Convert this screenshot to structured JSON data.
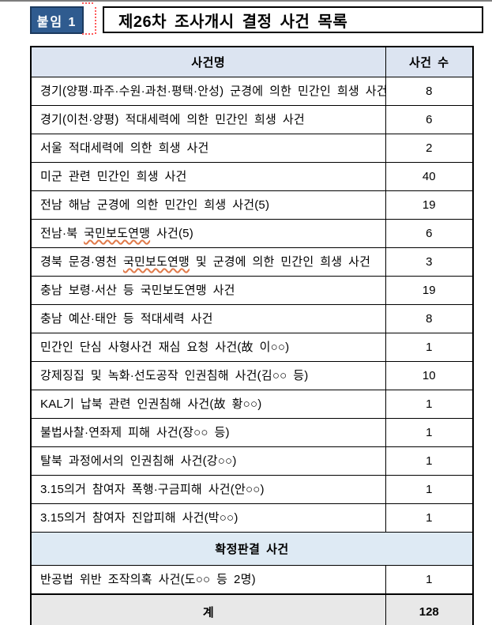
{
  "header": {
    "badge_label": "붙임 1",
    "title": "제26차 조사개시 결정 사건 목록"
  },
  "table": {
    "headers": {
      "name": "사건명",
      "count": "사건 수"
    },
    "rows": [
      {
        "name": "경기(양평·파주·수원·과천·평택·안성) 군경에 의한 민간인 희생 사건",
        "count": "8"
      },
      {
        "name": "경기(이천·양평) 적대세력에 의한 민간인 희생 사건",
        "count": "6"
      },
      {
        "name": "서울 적대세력에 의한 희생 사건",
        "count": "2"
      },
      {
        "name": "미군 관련 민간인 희생 사건",
        "count": "40"
      },
      {
        "name": "전남 해남 군경에 의한 민간인 희생 사건(5)",
        "count": "19"
      },
      {
        "name_pre": "전남·북 ",
        "wavy": "국민보도연맹",
        "name_post": " 사건(5)",
        "count": "6"
      },
      {
        "name_pre": "경북 문경·영천 ",
        "wavy": "국민보도연맹",
        "name_post": " 및 군경에 의한 민간인 희생 사건",
        "count": "3"
      },
      {
        "name": "충남 보령·서산 등 국민보도연맹 사건",
        "count": "19"
      },
      {
        "name": "충남 예산·태안 등 적대세력 사건",
        "count": "8"
      },
      {
        "name": "민간인 단심 사형사건 재심 요청 사건(故 이○○)",
        "count": "1"
      },
      {
        "name": "강제징집 및 녹화·선도공작 인권침해 사건(김○○ 등)",
        "count": "10"
      },
      {
        "name": "KAL기 납북 관련 인권침해 사건(故 황○○)",
        "count": "1"
      },
      {
        "name": "불법사찰·연좌제 피해 사건(장○○ 등)",
        "count": "1"
      },
      {
        "name": "탈북 과정에서의 인권침해 사건(강○○)",
        "count": "1"
      },
      {
        "name": "3.15의거 참여자 폭행·구금피해 사건(안○○)",
        "count": "1"
      },
      {
        "name": "3.15의거 참여자 진압피해 사건(박○○)",
        "count": "1"
      }
    ],
    "section_header": "확정판결 사건",
    "section_rows": [
      {
        "name": "반공법 위반 조작의혹 사건(도○○ 등 2명)",
        "count": "1"
      }
    ],
    "total": {
      "label": "계",
      "value": "128"
    }
  },
  "colors": {
    "badge_bg": "#2F5B8F",
    "badge_border": "#1C3A5E",
    "header_bg": "#DCE4F1",
    "section_bg": "#DEEAF4",
    "total_bg": "#E8E8E8",
    "wavy": "#E07A4A",
    "guide_red": "#FF5A5A",
    "top_line": "#7D7D7D"
  }
}
